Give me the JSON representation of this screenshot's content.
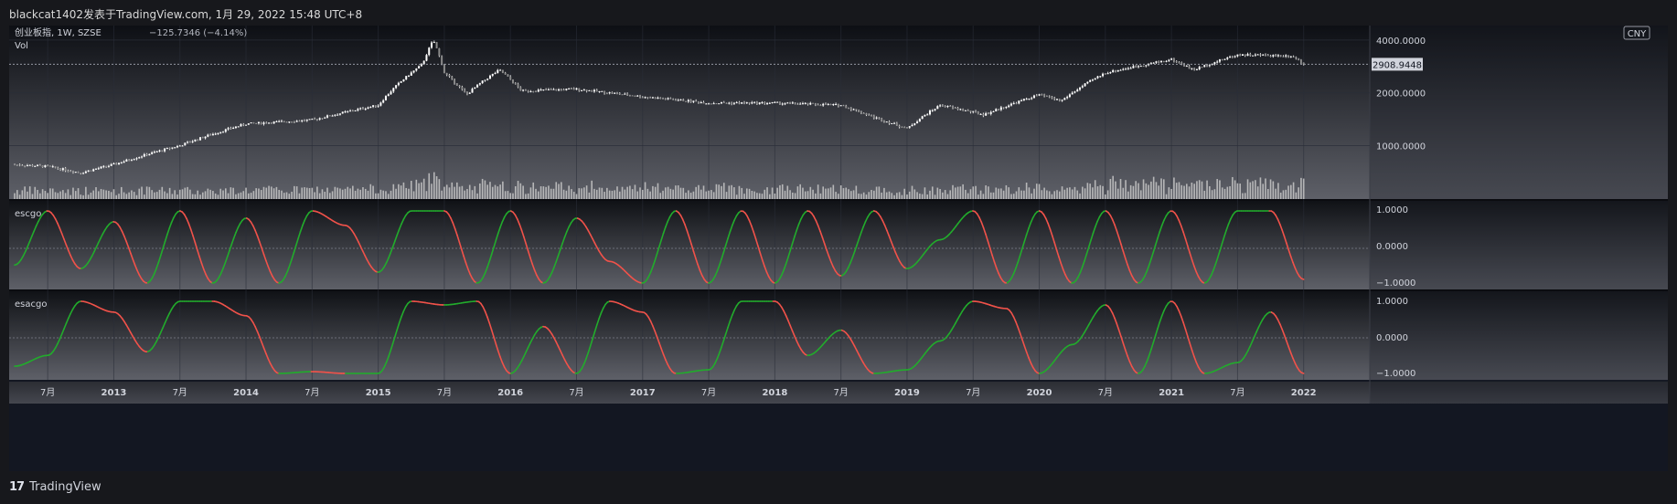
{
  "header": {
    "publisher_line": "blackcat1402发表于TradingView.com, 1月 29, 2022 15:48 UTC+8"
  },
  "main_pane": {
    "symbol_line": "创业板指, 1W, SZSE",
    "change": "−125.7346 (−4.14%)",
    "volume_label": "Vol",
    "currency_badge": "CNY",
    "last_price_label": "2908.9448",
    "price_ticks": [
      "4000.0000",
      "2000.0000",
      "1000.0000"
    ]
  },
  "indicator1": {
    "title": "escgo",
    "ticks": [
      "1.0000",
      "0.0000",
      "−1.0000"
    ]
  },
  "indicator2": {
    "title": "esacgo",
    "ticks": [
      "1.0000",
      "0.0000",
      "−1.0000"
    ]
  },
  "time_axis": {
    "labels": [
      "7月",
      "2013",
      "7月",
      "2014",
      "7月",
      "2015",
      "7月",
      "2016",
      "7月",
      "2017",
      "7月",
      "2018",
      "7月",
      "2019",
      "7月",
      "2020",
      "7月",
      "2021",
      "7月",
      "2022"
    ]
  },
  "footer": {
    "logo_mark": "17",
    "brand": "TradingView"
  },
  "colors": {
    "background": "#131722",
    "candle": "#ffffff",
    "volume": "#c8c8c8",
    "osc_up": "#22ab2c",
    "osc_down": "#f0524a",
    "grid": "#2a2e39"
  },
  "chart_data": [
    {
      "type": "candlestick",
      "title": "创业板指, 1W, SZSE",
      "scale": "log",
      "x": [
        "2012-04",
        "2012-07",
        "2012-10",
        "2013-01",
        "2013-07",
        "2014-01",
        "2014-07",
        "2015-01",
        "2015-05",
        "2015-06",
        "2015-07",
        "2015-09",
        "2015-12",
        "2016-02",
        "2016-07",
        "2017-01",
        "2017-07",
        "2018-01",
        "2018-07",
        "2018-10",
        "2019-01",
        "2019-04",
        "2019-08",
        "2020-01",
        "2020-03",
        "2020-07",
        "2021-01",
        "2021-03",
        "2021-07",
        "2021-12",
        "2022-01"
      ],
      "close": [
        780,
        760,
        700,
        780,
        1000,
        1330,
        1400,
        1700,
        2900,
        4000,
        2600,
        1950,
        2700,
        2050,
        2100,
        1900,
        1750,
        1750,
        1700,
        1450,
        1250,
        1700,
        1500,
        1950,
        1800,
        2600,
        3100,
        2700,
        3300,
        3250,
        2908.9448
      ],
      "ylim": [
        520,
        4500
      ],
      "price_ticks": [
        1000,
        2000,
        4000
      ],
      "last_price": 2908.9448
    },
    {
      "type": "line",
      "title": "escgo",
      "ylim": [
        -1,
        1
      ],
      "x": [
        "2012-04",
        "2012-07",
        "2012-10",
        "2013-01",
        "2013-04",
        "2013-07",
        "2013-10",
        "2014-01",
        "2014-04",
        "2014-07",
        "2014-10",
        "2015-01",
        "2015-04",
        "2015-07",
        "2015-10",
        "2016-01",
        "2016-04",
        "2016-07",
        "2016-10",
        "2017-01",
        "2017-04",
        "2017-07",
        "2017-10",
        "2018-01",
        "2018-04",
        "2018-07",
        "2018-10",
        "2019-01",
        "2019-04",
        "2019-07",
        "2019-10",
        "2020-01",
        "2020-04",
        "2020-07",
        "2020-10",
        "2021-01",
        "2021-04",
        "2021-07",
        "2021-10",
        "2022-01"
      ],
      "values": [
        -0.5,
        1.0,
        -0.6,
        0.7,
        -1.0,
        1.0,
        -1.0,
        0.8,
        -1.0,
        1.0,
        0.6,
        -0.7,
        1.0,
        1.0,
        -1.0,
        1.0,
        -1.0,
        0.8,
        -0.4,
        -1.0,
        1.0,
        -1.0,
        1.0,
        -1.0,
        1.0,
        -0.8,
        1.0,
        -0.6,
        0.2,
        1.0,
        -1.0,
        1.0,
        -1.0,
        1.0,
        -1.0,
        1.0,
        -1.0,
        1.0,
        1.0,
        -0.9
      ]
    },
    {
      "type": "line",
      "title": "esacgo",
      "ylim": [
        -1,
        1
      ],
      "x": [
        "2012-04",
        "2012-07",
        "2012-10",
        "2013-01",
        "2013-04",
        "2013-07",
        "2013-10",
        "2014-01",
        "2014-04",
        "2014-07",
        "2014-10",
        "2015-01",
        "2015-04",
        "2015-07",
        "2015-10",
        "2016-01",
        "2016-04",
        "2016-07",
        "2016-10",
        "2017-01",
        "2017-04",
        "2017-07",
        "2017-10",
        "2018-01",
        "2018-04",
        "2018-07",
        "2018-10",
        "2019-01",
        "2019-04",
        "2019-07",
        "2019-10",
        "2020-01",
        "2020-04",
        "2020-07",
        "2020-10",
        "2021-01",
        "2021-04",
        "2021-07",
        "2021-10",
        "2022-01"
      ],
      "values": [
        -0.8,
        -0.5,
        1.0,
        0.7,
        -0.4,
        1.0,
        1.0,
        0.6,
        -1.0,
        -0.95,
        -1.0,
        -1.0,
        1.0,
        0.9,
        1.0,
        -1.0,
        0.3,
        -1.0,
        1.0,
        0.7,
        -1.0,
        -0.9,
        1.0,
        1.0,
        -0.5,
        0.2,
        -1.0,
        -0.9,
        -0.1,
        1.0,
        0.8,
        -1.0,
        -0.2,
        0.9,
        -1.0,
        1.0,
        -1.0,
        -0.7,
        0.7,
        -1.0
      ]
    }
  ]
}
